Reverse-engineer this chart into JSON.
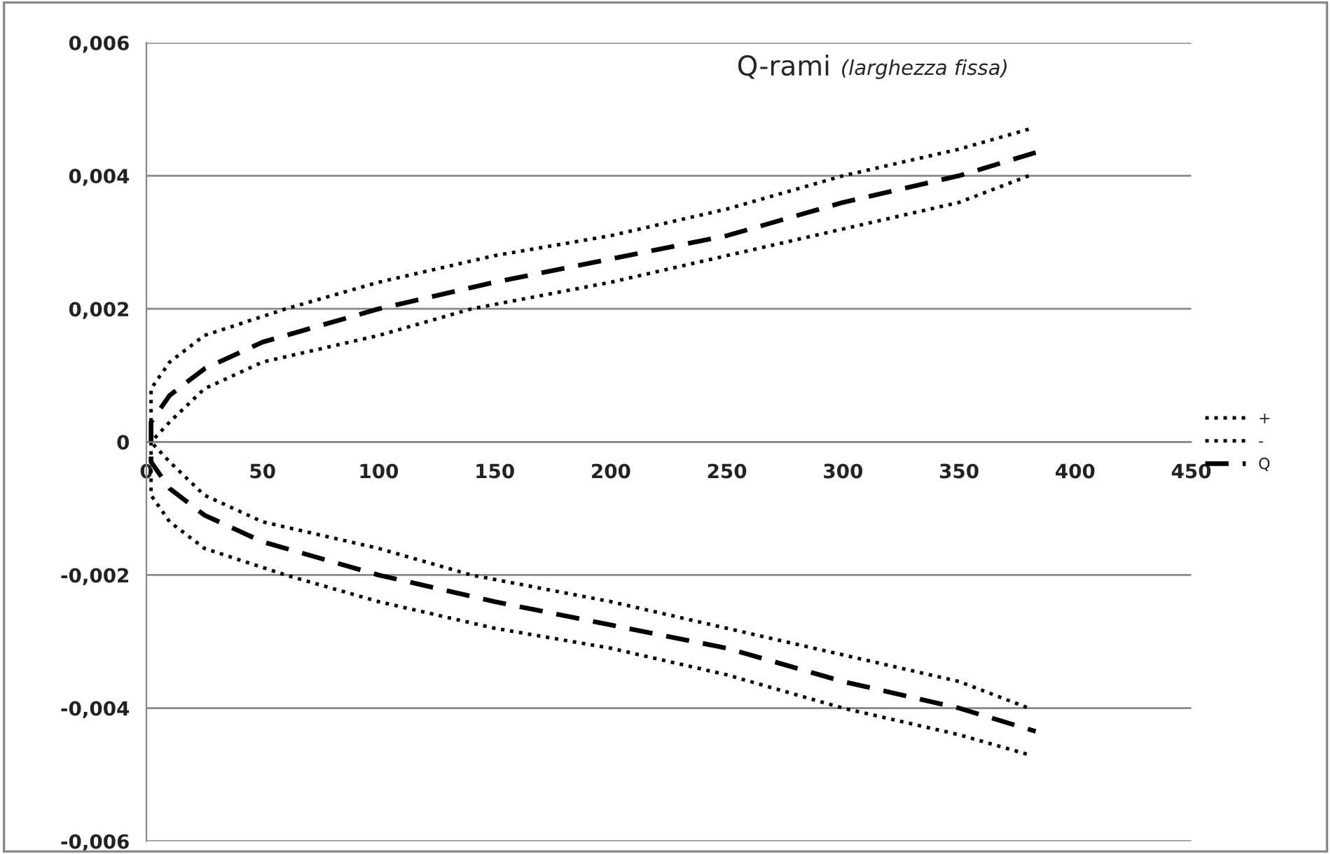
{
  "chart_data": {
    "type": "line",
    "title": "Q-rami",
    "subtitle": "(larghezza fissa)",
    "xlim": [
      0,
      450
    ],
    "xticks": [
      0,
      50,
      100,
      150,
      200,
      250,
      300,
      350,
      400,
      450
    ],
    "ylim": [
      -0.006,
      0.006
    ],
    "yticks": [
      {
        "value": -0.006,
        "label": "-0,006"
      },
      {
        "value": -0.004,
        "label": "-0,004"
      },
      {
        "value": -0.002,
        "label": "-0,002"
      },
      {
        "value": 0,
        "label": "0"
      },
      {
        "value": 0.002,
        "label": "0,002"
      },
      {
        "value": 0.004,
        "label": "0,004"
      },
      {
        "value": 0.006,
        "label": "0,006"
      }
    ],
    "grid": "y",
    "legend": "right",
    "series": [
      {
        "name": "+",
        "color": "#000000",
        "line_style": "dotted",
        "x": [
          380,
          350,
          300,
          250,
          200,
          150,
          100,
          60,
          25,
          10,
          2,
          2,
          10,
          25,
          50,
          100,
          140,
          200,
          250,
          300,
          350,
          380
        ],
        "values": [
          0.0047,
          0.0044,
          0.004,
          0.0035,
          0.0031,
          0.0028,
          0.0024,
          0.002,
          0.0016,
          0.0012,
          0.0008,
          0.0,
          -0.0003,
          -0.0008,
          -0.0012,
          -0.0016,
          -0.002,
          -0.0024,
          -0.0028,
          -0.0032,
          -0.0036,
          -0.004
        ]
      },
      {
        "name": "-",
        "color": "#000000",
        "line_style": "dotted",
        "x": [
          380,
          350,
          300,
          250,
          200,
          140,
          100,
          50,
          25,
          10,
          2,
          2,
          10,
          25,
          60,
          100,
          150,
          200,
          250,
          300,
          350,
          380
        ],
        "values": [
          0.004,
          0.0036,
          0.0032,
          0.0028,
          0.0024,
          0.002,
          0.0016,
          0.0012,
          0.0008,
          0.0003,
          0.0,
          -0.0008,
          -0.0012,
          -0.0016,
          -0.002,
          -0.0024,
          -0.0028,
          -0.0031,
          -0.0035,
          -0.004,
          -0.0044,
          -0.0047
        ]
      },
      {
        "name": "Q",
        "color": "#000000",
        "line_style": "dashed",
        "x": [
          383,
          350,
          300,
          250,
          200,
          150,
          100,
          50,
          25,
          10,
          2,
          2,
          10,
          25,
          50,
          100,
          150,
          200,
          250,
          300,
          350,
          383
        ],
        "values": [
          0.00435,
          0.004,
          0.0036,
          0.0031,
          0.00275,
          0.0024,
          0.002,
          0.0015,
          0.0011,
          0.0007,
          0.0003,
          -0.0003,
          -0.0007,
          -0.0011,
          -0.0015,
          -0.002,
          -0.0024,
          -0.00275,
          -0.0031,
          -0.0036,
          -0.004,
          -0.00435
        ]
      }
    ]
  }
}
